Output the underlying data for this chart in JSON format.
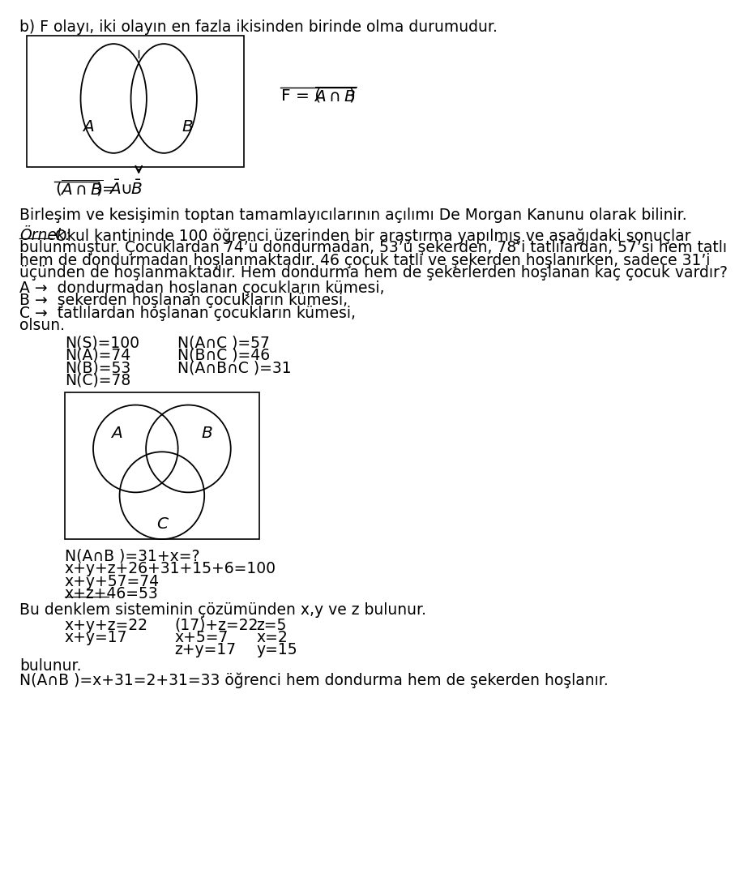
{
  "title_line": "b) F olayı, iki olayın en fazla ikisinden birinde olma durumudur.",
  "birlesim_text": "Birleşim ve kesişimin toptan tamamlayıcılarının açılımı De Morgan Kanunu olarak bilinir.",
  "ornek_label": "Örnek:",
  "ornek_body_lines": [
    "Okul kantininde 100 öğrenci üzerinden bir araştırma yapılmış ve aşağıdaki sonuçlar",
    "bulunmuştur. Çocuklardan 74’ü dondurmadan, 53’ü şekerden, 78’i tatlılardan, 57’si hem tatlı",
    "hem de dondurmadan hoşlanmaktadır. 46 çocuk tatlı ve şekerden hoşlanırken, sadece 31’i",
    "üçünden de hoşlanmaktadır. Hem dondurma hem de şekerlerden hoşlanan kaç çocuk vardır?"
  ],
  "set_defs": [
    "A →  dondurmadan hoşlanan çocukların kümesi,",
    "B →  şekerden hoşlanan çocukların kümesi,",
    "C →  tatlılardan hoşlanan çocukların kümesi,"
  ],
  "olsun": "olsun.",
  "stats_left": [
    "N(S)=100",
    "N(A)=74",
    "N(B)=53",
    "N(C)=78"
  ],
  "stats_right_labels": [
    "N(A",
    "C )=57",
    "N(B",
    "C )=46",
    "N(A",
    "B",
    "C )=31"
  ],
  "calc_lines": [
    "N(A∩B )=31+x=?",
    "x+y+z+26+31+15+6=100",
    "x+y+57=74",
    "x+z+46=53"
  ],
  "calc_underline_idx": 3,
  "solution_text": "Bu denklem sisteminin çözümünden x,y ve z bulunur.",
  "solution_rows": [
    [
      "x+y+z=22",
      "(17)+z=22",
      "z=5"
    ],
    [
      "x+y=17",
      "x+5=7",
      "x=2"
    ],
    [
      "",
      "z+y=17",
      "y=15"
    ]
  ],
  "bulunur": "bulunur.",
  "final_line": "N(A∩B )=x+31=2+31=33 öğrenci hem dondurma hem de şekerden hoşlanır.",
  "bg_color": "#ffffff",
  "text_color": "#000000"
}
